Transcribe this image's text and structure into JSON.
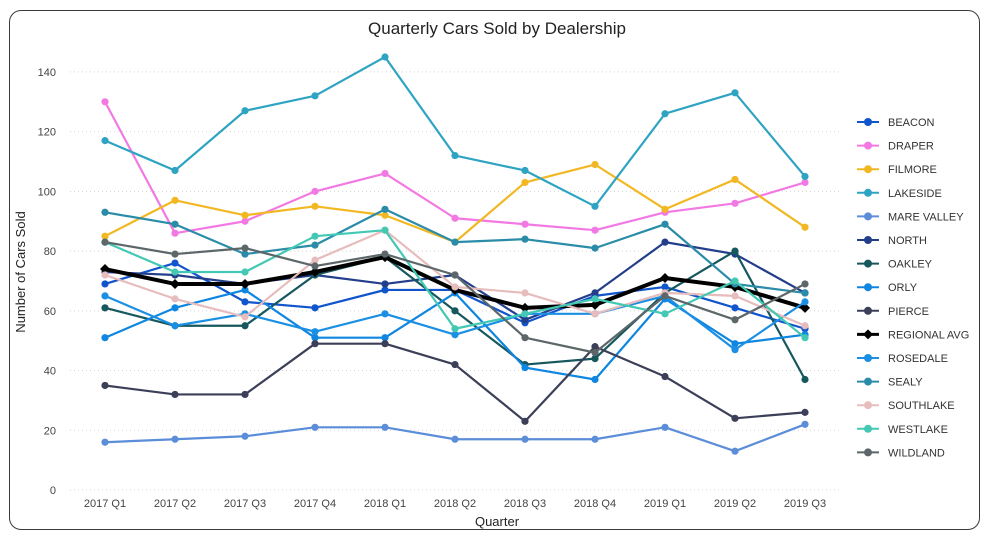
{
  "chart_data": {
    "type": "line",
    "title": "Quarterly Cars Sold by Dealership",
    "xlabel": "Quarter",
    "ylabel": "Number of Cars Sold",
    "ylim": [
      0,
      145
    ],
    "yticks": [
      0,
      20,
      40,
      60,
      80,
      100,
      120,
      140
    ],
    "grid": "horizontal dotted",
    "legend_position": "right",
    "categories": [
      "2017 Q1",
      "2017 Q2",
      "2017 Q3",
      "2017 Q4",
      "2018 Q1",
      "2018 Q2",
      "2018 Q3",
      "2018 Q4",
      "2019 Q1",
      "2019 Q2",
      "2019 Q3"
    ],
    "series": [
      {
        "name": "BEACON",
        "color": "#1155cc",
        "values": [
          69,
          76,
          63,
          61,
          67,
          67,
          56,
          65,
          68,
          61,
          54
        ]
      },
      {
        "name": "DRAPER",
        "color": "#f279e3",
        "values": [
          130,
          86,
          90,
          100,
          106,
          91,
          89,
          87,
          93,
          96,
          103
        ]
      },
      {
        "name": "FILMORE",
        "color": "#f2b823",
        "values": [
          85,
          97,
          92,
          95,
          92,
          83,
          103,
          109,
          94,
          104,
          88
        ]
      },
      {
        "name": "LAKESIDE",
        "color": "#2fa4c2",
        "values": [
          117,
          107,
          127,
          132,
          145,
          112,
          107,
          95,
          126,
          133,
          105
        ]
      },
      {
        "name": "MARE VALLEY",
        "color": "#5b8dd9",
        "values": [
          16,
          17,
          18,
          21,
          21,
          17,
          17,
          17,
          21,
          13,
          22
        ]
      },
      {
        "name": "NORTH",
        "color": "#233e8b",
        "values": [
          73,
          72,
          69,
          72,
          69,
          72,
          57,
          66,
          83,
          79,
          66
        ]
      },
      {
        "name": "OAKLEY",
        "color": "#17575e",
        "values": [
          61,
          55,
          55,
          72,
          78,
          60,
          42,
          44,
          66,
          80,
          37
        ]
      },
      {
        "name": "ORLY",
        "color": "#0f86e0",
        "values": [
          51,
          61,
          67,
          51,
          51,
          66,
          41,
          37,
          64,
          49,
          52
        ]
      },
      {
        "name": "PIERCE",
        "color": "#3b3f58",
        "values": [
          35,
          32,
          32,
          49,
          49,
          42,
          23,
          48,
          38,
          24,
          26
        ]
      },
      {
        "name": "REGIONAL AVG",
        "color": "#000000",
        "values": [
          74,
          69,
          69,
          73,
          78,
          67,
          61,
          62,
          71,
          68,
          61
        ]
      },
      {
        "name": "ROSEDALE",
        "color": "#1a8fe3",
        "values": [
          65,
          55,
          59,
          53,
          59,
          52,
          59,
          59,
          65,
          47,
          63
        ]
      },
      {
        "name": "SEALY",
        "color": "#2a8ca8",
        "values": [
          93,
          89,
          79,
          82,
          94,
          83,
          84,
          81,
          89,
          69,
          66
        ]
      },
      {
        "name": "SOUTHLAKE",
        "color": "#e6bcbc",
        "values": [
          72,
          64,
          58,
          77,
          87,
          68,
          66,
          59,
          66,
          65,
          55
        ]
      },
      {
        "name": "WESTLAKE",
        "color": "#43c8b4",
        "values": [
          83,
          73,
          73,
          85,
          87,
          54,
          59,
          64,
          59,
          70,
          51
        ]
      },
      {
        "name": "WILDLAND",
        "color": "#5d676a",
        "values": [
          83,
          79,
          81,
          75,
          79,
          72,
          51,
          46,
          65,
          57,
          69
        ]
      }
    ]
  }
}
